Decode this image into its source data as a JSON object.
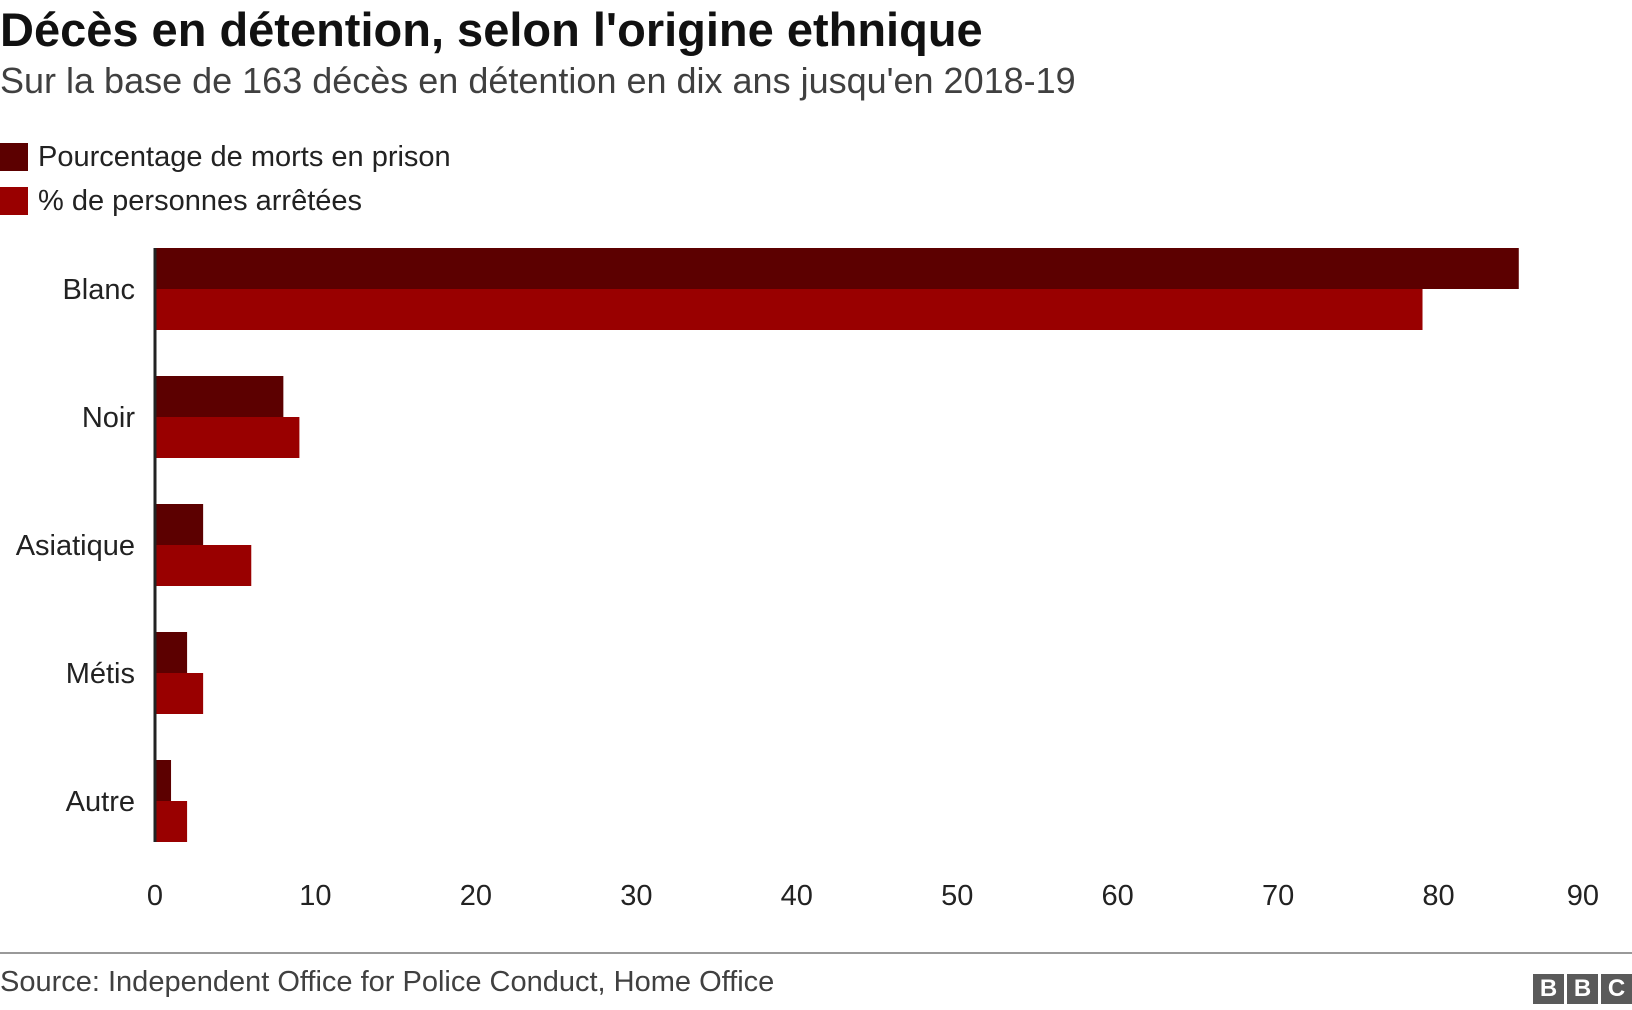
{
  "header": {
    "title": "Décès en détention, selon l'origine ethnique",
    "subtitle": "Sur la base de 163 décès en détention en dix ans jusqu'en 2018-19"
  },
  "colors": {
    "series_dark": "#5c0000",
    "series_red": "#990000",
    "axis": "#222222"
  },
  "chart_data": {
    "type": "bar",
    "orientation": "horizontal",
    "title": "Décès en détention, selon l'origine ethnique",
    "subtitle": "Sur la base de 163 décès en détention en dix ans jusqu'en 2018-19",
    "categories": [
      "Blanc",
      "Noir",
      "Asiatique",
      "Métis",
      "Autre"
    ],
    "series": [
      {
        "name": "Pourcentage de morts en prison",
        "color": "#5c0000",
        "values": [
          85,
          8,
          3,
          2,
          1
        ]
      },
      {
        "name": "% de personnes arrêtées",
        "color": "#990000",
        "values": [
          79,
          9,
          6,
          3,
          2
        ]
      }
    ],
    "xlim": [
      0,
      90
    ],
    "xticks": [
      "0",
      "10",
      "20",
      "30",
      "40",
      "50",
      "60",
      "70",
      "80",
      "90"
    ],
    "grid": false,
    "legend": "top-left"
  },
  "footer": {
    "source": "Source: Independent Office for Police Conduct, Home Office",
    "logo_letters": [
      "B",
      "B",
      "C"
    ]
  }
}
